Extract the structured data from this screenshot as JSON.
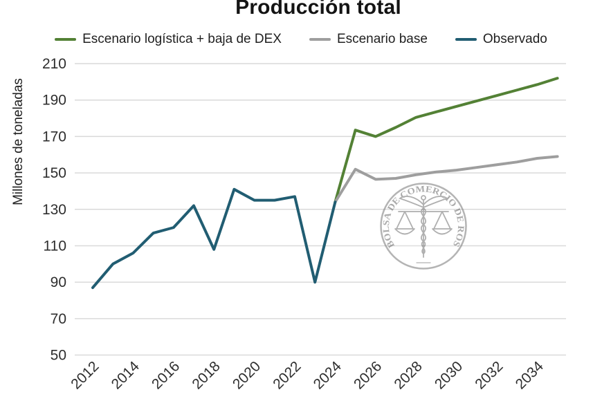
{
  "chart_data": {
    "type": "line",
    "title": "Producción total",
    "xlabel": "",
    "ylabel": "Millones de toneladas",
    "ylim": [
      50,
      210
    ],
    "xlim": [
      2012,
      2035
    ],
    "y_ticks": [
      50,
      70,
      90,
      110,
      130,
      150,
      170,
      190,
      210
    ],
    "x_ticks": [
      2012,
      2014,
      2016,
      2018,
      2020,
      2022,
      2024,
      2026,
      2028,
      2030,
      2032,
      2034
    ],
    "grid": "horizontal",
    "legend_position": "top",
    "x_tick_rotation": 45,
    "series": [
      {
        "key": "escenario-logistica-baja-dex",
        "name": "Escenario logística + baja de DEX",
        "color": "#538135",
        "x": [
          2024,
          2025,
          2026,
          2027,
          2028,
          2029,
          2030,
          2031,
          2032,
          2033,
          2034,
          2035
        ],
        "values": [
          134,
          173.5,
          170,
          175,
          180.5,
          183.5,
          186.5,
          189.5,
          192.5,
          195.5,
          198.5,
          202
        ]
      },
      {
        "key": "escenario-base",
        "name": "Escenario base",
        "color": "#9e9e9e",
        "x": [
          2024,
          2025,
          2026,
          2027,
          2028,
          2029,
          2030,
          2031,
          2032,
          2033,
          2034,
          2035
        ],
        "values": [
          134,
          152,
          146.5,
          147,
          149,
          150.5,
          151.5,
          153,
          154.5,
          156,
          158,
          159
        ]
      },
      {
        "key": "observado",
        "name": "Observado",
        "color": "#215d72",
        "x": [
          2012,
          2013,
          2014,
          2015,
          2016,
          2017,
          2018,
          2019,
          2020,
          2021,
          2022,
          2023,
          2024
        ],
        "values": [
          87,
          100,
          106,
          117,
          120,
          132,
          108,
          141,
          135,
          135,
          137,
          90,
          134
        ]
      }
    ]
  },
  "watermark": {
    "text": "BOLSA DE COMERCIO DE ROSARIO"
  },
  "colors": {
    "gridline": "#d9d9d9",
    "tick_text": "#2e2e2e",
    "title_text": "#141414"
  }
}
